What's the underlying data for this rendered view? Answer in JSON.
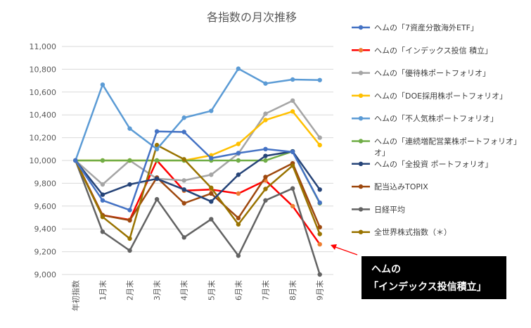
{
  "chart_data": {
    "type": "line",
    "title": "各指数の月次推移",
    "xlabel": "",
    "ylabel": "",
    "categories": [
      "年初指数",
      "1月末",
      "2月末",
      "3月末",
      "4月末",
      "5月末",
      "6月末",
      "7月末",
      "8月末",
      "9月末"
    ],
    "ylim": [
      9000,
      11000
    ],
    "yticks": [
      "11,000",
      "10,800",
      "10,600",
      "10,400",
      "10,200",
      "10,000",
      "9,800",
      "9,600",
      "9,400",
      "9,200",
      "9,000"
    ],
    "grid": true,
    "legend_position": "right",
    "series": [
      {
        "name": "ヘムの「7資産分散海外ETF」",
        "color": "#4472C4",
        "values": [
          10000,
          9650,
          9565,
          10255,
          10250,
          10020,
          10065,
          10100,
          10075,
          9630
        ]
      },
      {
        "name": "ヘムの「インデックス投信 積立」",
        "color": "#FF0000",
        "marker_color": "#ED7D31",
        "values": [
          10000,
          9520,
          9480,
          10000,
          9735,
          9745,
          9710,
          9825,
          9600,
          9265
        ]
      },
      {
        "name": "ヘムの「優待株ポートフォリオ」",
        "color": "#A5A5A5",
        "values": [
          10000,
          9790,
          10000,
          9840,
          9825,
          9875,
          10060,
          10410,
          10525,
          10200
        ]
      },
      {
        "name": "ヘムの「DOE採用株ポートフォリオ」",
        "color": "#FFC000",
        "values": [
          10000,
          10000,
          10000,
          10000,
          10000,
          10045,
          10145,
          10355,
          10430,
          10135
        ]
      },
      {
        "name": "ヘムの「不人気株ポートフォリオ」",
        "color": "#5B9BD5",
        "values": [
          10000,
          10665,
          10280,
          10100,
          10375,
          10435,
          10805,
          10675,
          10710,
          10705
        ]
      },
      {
        "name": "ヘムの「連続増配営業株ポートフォリオ」",
        "color": "#70AD47",
        "values": [
          10000,
          10000,
          10000,
          10000,
          10000,
          10000,
          10000,
          10000,
          10080,
          9625
        ]
      },
      {
        "name": "ヘムの「全投資 ポートフォリオ」",
        "color": "#264478",
        "values": [
          10000,
          9700,
          9790,
          9840,
          9745,
          9640,
          9875,
          10040,
          10080,
          9745
        ]
      },
      {
        "name": "配当込みTOPIX",
        "color": "#9E480E",
        "values": [
          10000,
          9520,
          9475,
          9850,
          9625,
          9710,
          9495,
          9855,
          9975,
          9415
        ]
      },
      {
        "name": "日経平均",
        "color": "#636363",
        "values": [
          10000,
          9375,
          9210,
          9660,
          9325,
          9485,
          9165,
          9650,
          9755,
          9000
        ]
      },
      {
        "name": "全世界株式指数（＊）",
        "color": "#997300",
        "values": [
          10000,
          9505,
          9315,
          10135,
          10010,
          9760,
          9440,
          9750,
          9955,
          9355
        ]
      }
    ]
  },
  "legend_wrap_overflow": "オ」",
  "callout": {
    "line1": "ヘムの",
    "line2": "「インデックス投信積立」"
  }
}
